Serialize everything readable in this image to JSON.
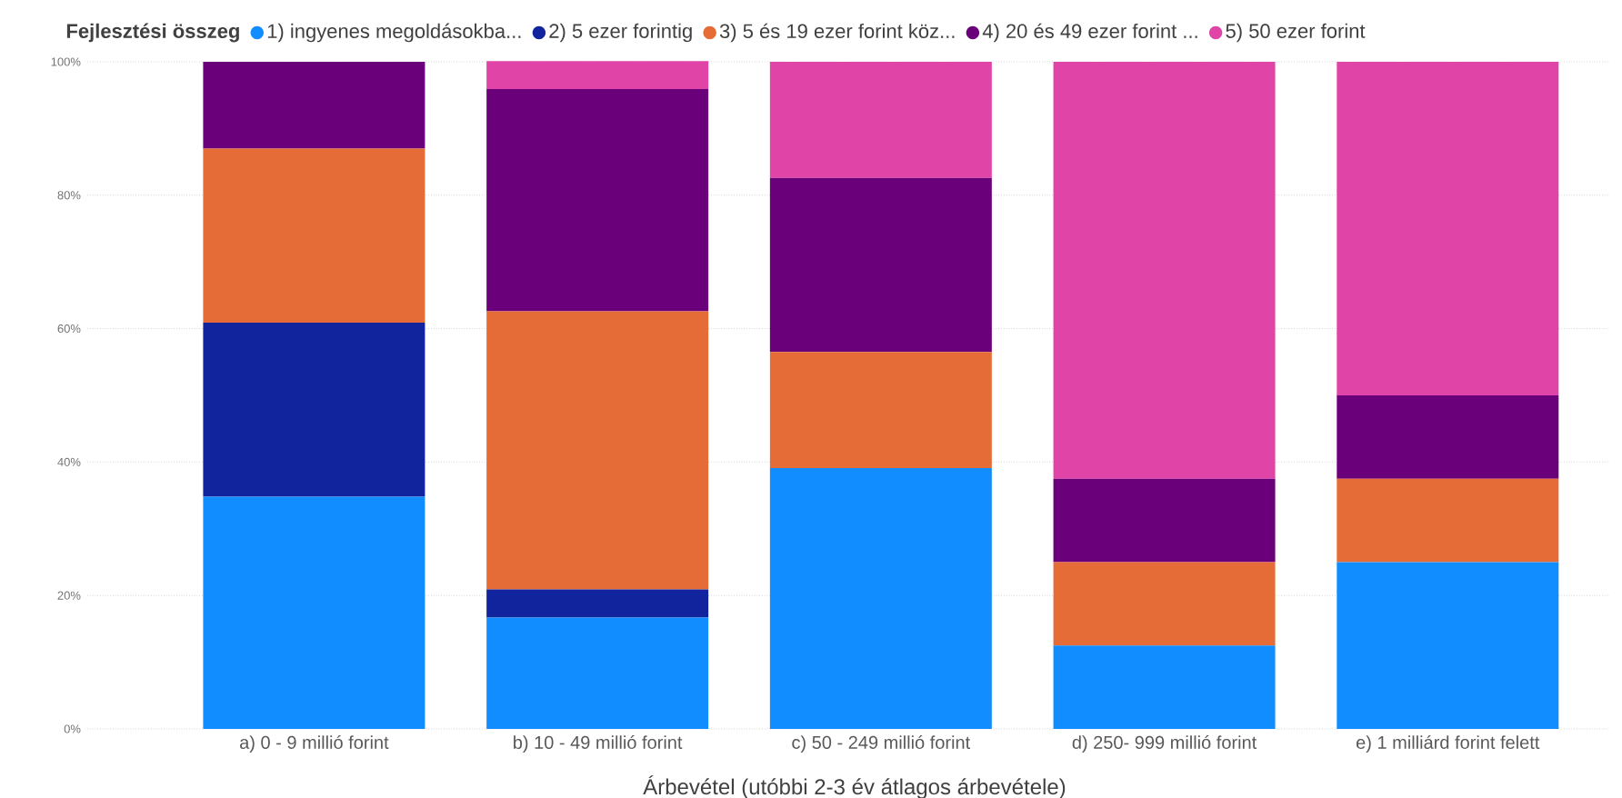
{
  "chart_data": {
    "type": "bar",
    "stacked": true,
    "legend_title": "Fejlesztési összeg",
    "legend": "top left",
    "xlabel": "Árbevétel (utóbbi 2-3 év átlagos árbevétele)",
    "categories": [
      "a) 0 - 9 millió forint",
      "b) 10 - 49 millió forint",
      "c) 50 - 249 millió forint",
      "d) 250- 999 millió forint",
      "e) 1 milliárd forint felett"
    ],
    "series": [
      {
        "name": "1) ingyenes megoldásokba...",
        "color": "#118dff",
        "values": [
          34.8,
          16.7,
          39.1,
          12.5,
          25
        ]
      },
      {
        "name": "2) 5 ezer forintig",
        "color": "#12239e",
        "values": [
          26.1,
          4.2,
          0,
          0,
          0
        ]
      },
      {
        "name": "3) 5 és 19 ezer forint köz...",
        "color": "#e66c37",
        "values": [
          26.1,
          41.7,
          17.4,
          12.5,
          12.5
        ]
      },
      {
        "name": "4) 20 és 49 ezer forint ...",
        "color": "#6b007b",
        "values": [
          13.0,
          33.3,
          26.1,
          12.5,
          12.5
        ]
      },
      {
        "name": "5) 50 ezer forint",
        "color": "#e044a7",
        "values": [
          0,
          4.2,
          17.4,
          62.5,
          50
        ]
      }
    ],
    "ylim": [
      0,
      100
    ],
    "yticks": [
      {
        "value": 0,
        "label": "0%"
      },
      {
        "value": 20,
        "label": "20%"
      },
      {
        "value": 40,
        "label": "40%"
      },
      {
        "value": 60,
        "label": "60%"
      },
      {
        "value": 80,
        "label": "80%"
      },
      {
        "value": 100,
        "label": "100%"
      }
    ],
    "grid": "y"
  }
}
